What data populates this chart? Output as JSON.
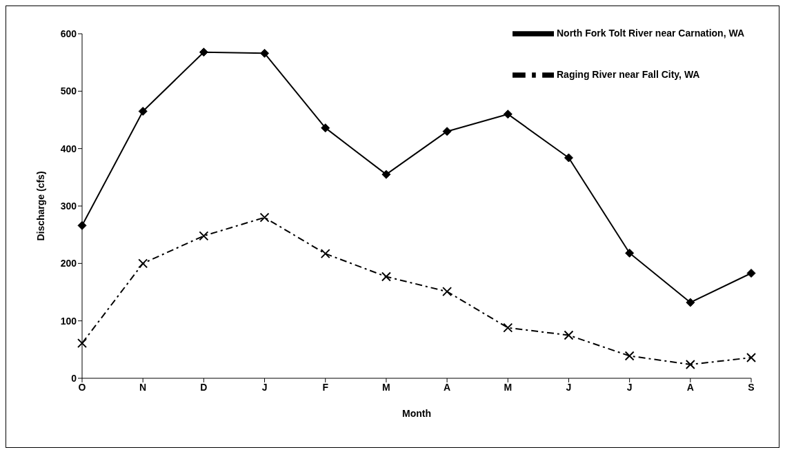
{
  "chart_data": {
    "type": "line",
    "xlabel": "Month",
    "ylabel": "Discharge (cfs)",
    "categories": [
      "O",
      "N",
      "D",
      "J",
      "F",
      "M",
      "A",
      "M",
      "J",
      "J",
      "A",
      "S"
    ],
    "series": [
      {
        "name": "North Fork Tolt River near Carnation, WA",
        "color": "#000000",
        "marker": "diamond",
        "line_style": "solid",
        "values": [
          266,
          465,
          568,
          566,
          436,
          355,
          430,
          460,
          384,
          218,
          132,
          183
        ]
      },
      {
        "name": "Raging River near Fall City, WA",
        "color": "#000000",
        "marker": "cross",
        "line_style": "dashed",
        "values": [
          61,
          200,
          248,
          280,
          217,
          177,
          151,
          88,
          75,
          39,
          24,
          36
        ]
      }
    ],
    "ylim": [
      0,
      600
    ],
    "yticks": [
      0,
      100,
      200,
      300,
      400,
      500,
      600
    ],
    "grid": false,
    "legend": "top right"
  }
}
